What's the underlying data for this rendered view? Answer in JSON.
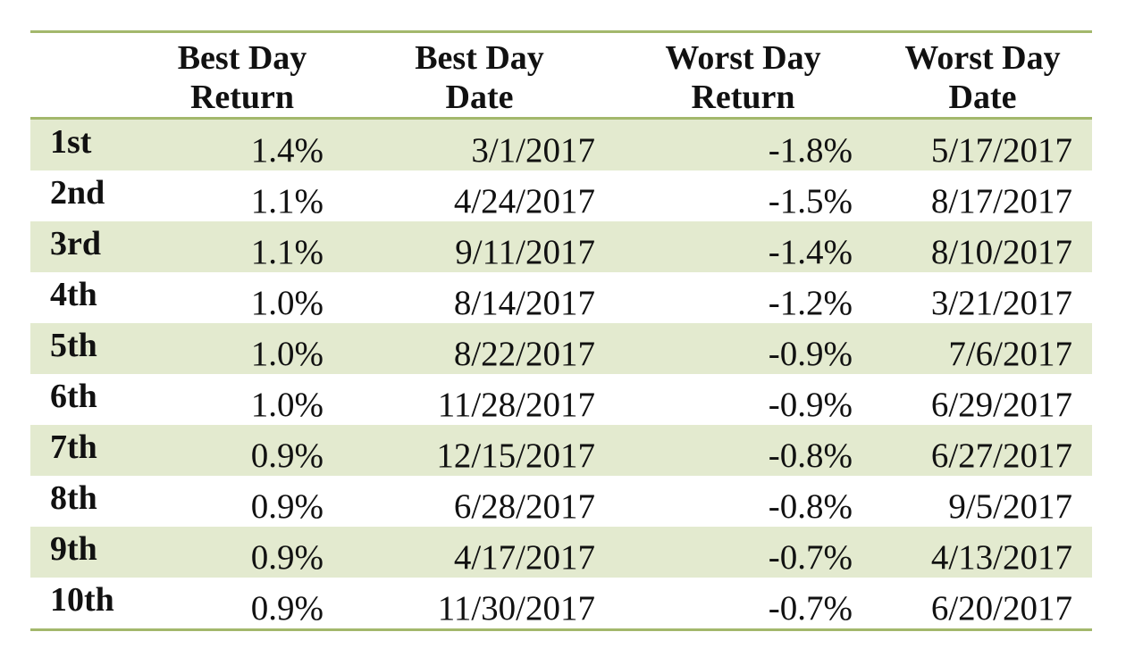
{
  "colors": {
    "rule": "#a3b86c",
    "band": "#e3eacf",
    "text": "#111111"
  },
  "chart_data": {
    "type": "table",
    "columns": [
      {
        "line1": "Best Day",
        "line2": "Return"
      },
      {
        "line1": "Best Day",
        "line2": "Date"
      },
      {
        "line1": "Worst Day",
        "line2": "Return"
      },
      {
        "line1": "Worst Day",
        "line2": "Date"
      }
    ],
    "rows": [
      {
        "rank": "1st",
        "best_return": "1.4%",
        "best_date": "3/1/2017",
        "worst_return": "-1.8%",
        "worst_date": "5/17/2017"
      },
      {
        "rank": "2nd",
        "best_return": "1.1%",
        "best_date": "4/24/2017",
        "worst_return": "-1.5%",
        "worst_date": "8/17/2017"
      },
      {
        "rank": "3rd",
        "best_return": "1.1%",
        "best_date": "9/11/2017",
        "worst_return": "-1.4%",
        "worst_date": "8/10/2017"
      },
      {
        "rank": "4th",
        "best_return": "1.0%",
        "best_date": "8/14/2017",
        "worst_return": "-1.2%",
        "worst_date": "3/21/2017"
      },
      {
        "rank": "5th",
        "best_return": "1.0%",
        "best_date": "8/22/2017",
        "worst_return": "-0.9%",
        "worst_date": "7/6/2017"
      },
      {
        "rank": "6th",
        "best_return": "1.0%",
        "best_date": "11/28/2017",
        "worst_return": "-0.9%",
        "worst_date": "6/29/2017"
      },
      {
        "rank": "7th",
        "best_return": "0.9%",
        "best_date": "12/15/2017",
        "worst_return": "-0.8%",
        "worst_date": "6/27/2017"
      },
      {
        "rank": "8th",
        "best_return": "0.9%",
        "best_date": "6/28/2017",
        "worst_return": "-0.8%",
        "worst_date": "9/5/2017"
      },
      {
        "rank": "9th",
        "best_return": "0.9%",
        "best_date": "4/17/2017",
        "worst_return": "-0.7%",
        "worst_date": "4/13/2017"
      },
      {
        "rank": "10th",
        "best_return": "0.9%",
        "best_date": "11/30/2017",
        "worst_return": "-0.7%",
        "worst_date": "6/20/2017"
      }
    ]
  }
}
